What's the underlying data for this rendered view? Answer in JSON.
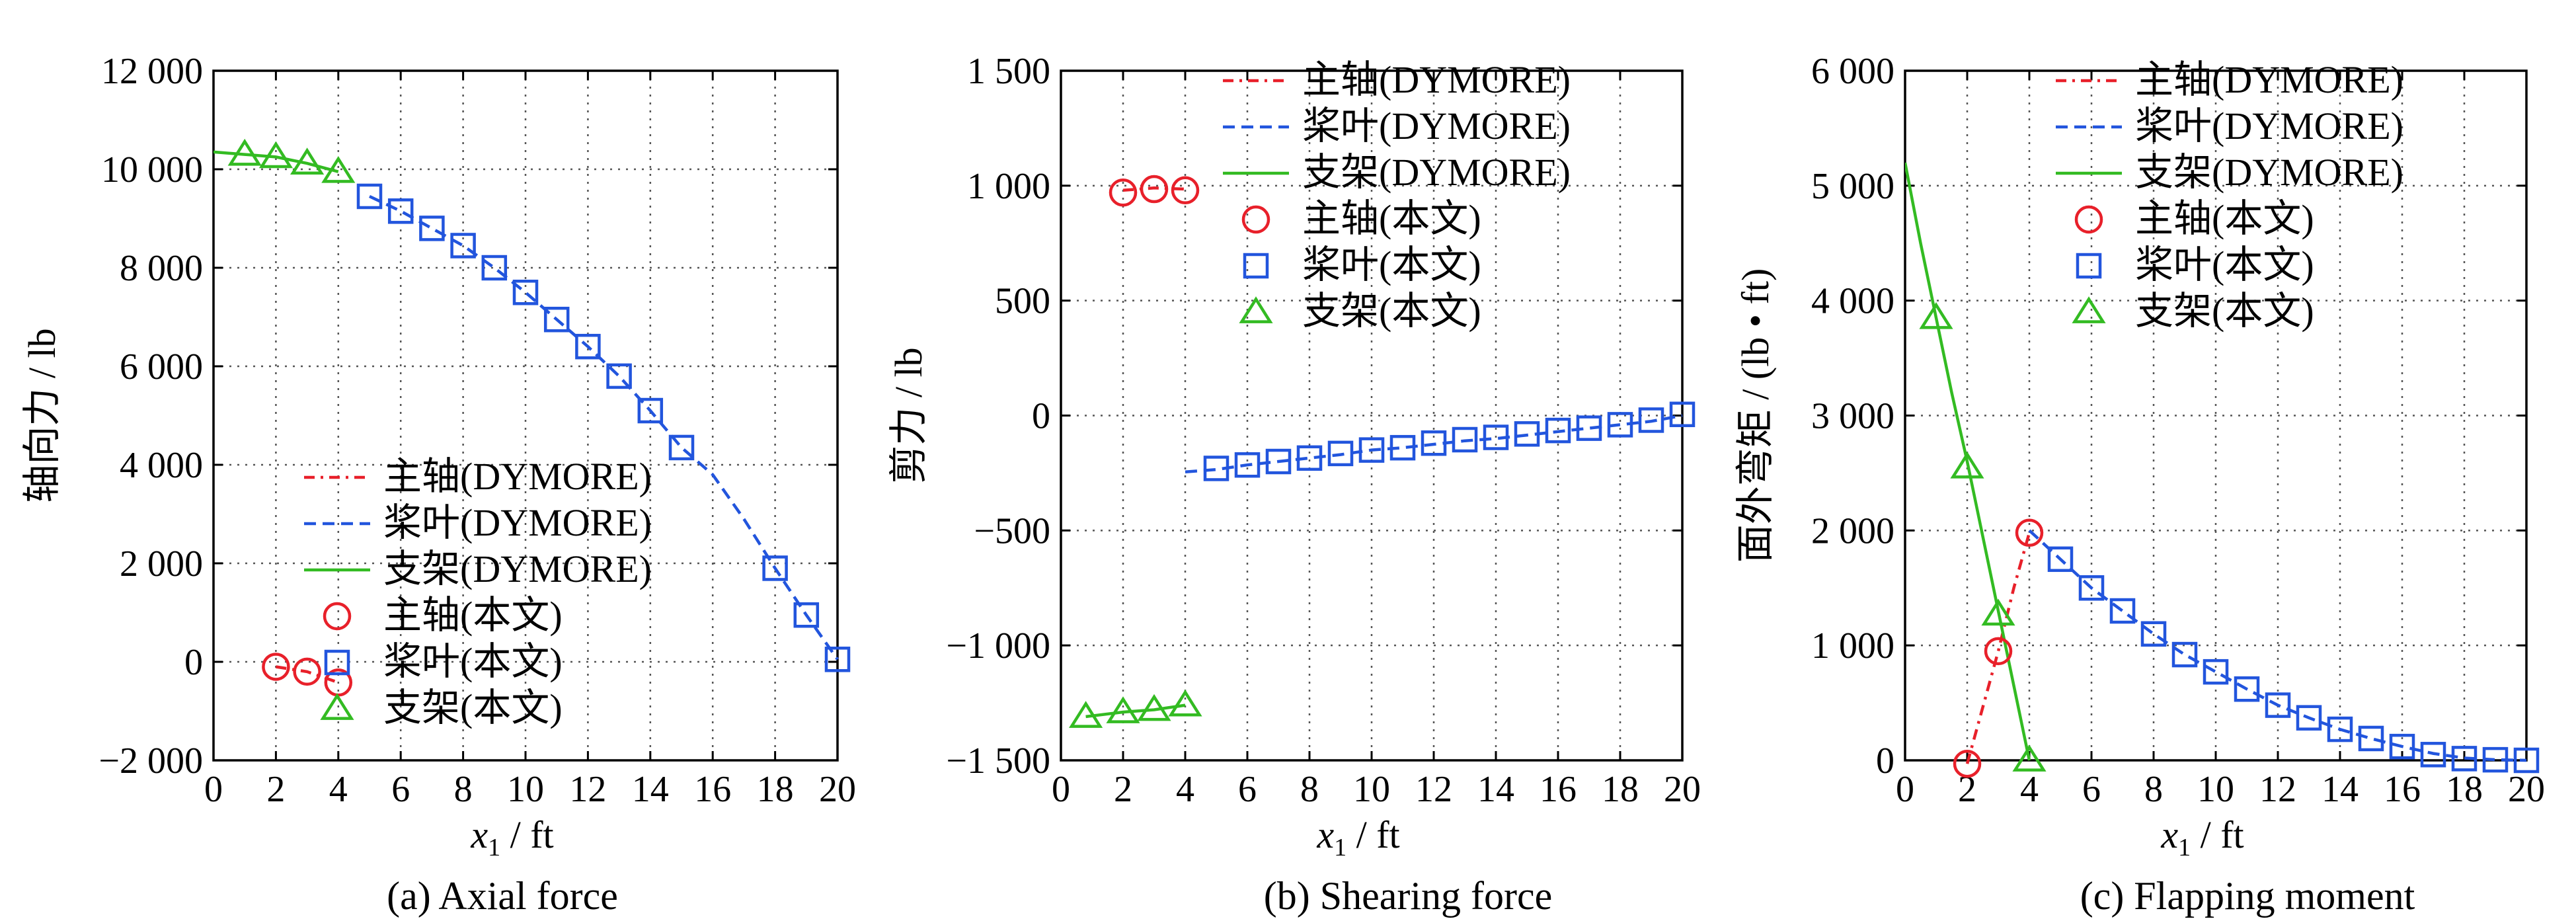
{
  "colors": {
    "main_shaft": "#e8202a",
    "blade": "#2255dd",
    "bracket": "#33bb22",
    "grid": "#555555",
    "axis": "#000000"
  },
  "chart_data": [
    {
      "type": "scatter",
      "caption": "(a)  Axial force",
      "ylabel": "轴向力 / lb",
      "xlabel_var": "x",
      "xlabel_sub": "1",
      "xlabel_unit": " / ft",
      "xlim": [
        0,
        20
      ],
      "ylim": [
        -2000,
        12000
      ],
      "xticks": [
        0,
        2,
        4,
        6,
        8,
        10,
        12,
        14,
        16,
        18,
        20
      ],
      "xtick_labels": [
        "0",
        "2",
        "4",
        "6",
        "8",
        "10",
        "12",
        "14",
        "16",
        "18",
        "20"
      ],
      "yticks": [
        -2000,
        0,
        2000,
        4000,
        6000,
        8000,
        10000,
        12000
      ],
      "ytick_labels": [
        "−2 000",
        "0",
        "2 000",
        "4 000",
        "6 000",
        "8 000",
        "10 000",
        "12 000"
      ],
      "grid": true,
      "legend_position": "lower-center",
      "legend": [
        "主轴(DYMORE)",
        "桨叶(DYMORE)",
        "支架(DYMORE)",
        "主轴(本文)",
        "桨叶(本文)",
        "支架(本文)"
      ],
      "series": [
        {
          "key": "main_shaft",
          "style": "dashdot",
          "points": [
            [
              2,
              -100
            ],
            [
              3,
              -200
            ],
            [
              4,
              -420
            ]
          ]
        },
        {
          "key": "blade",
          "style": "dashed",
          "points": [
            [
              5,
              9450
            ],
            [
              6,
              9150
            ],
            [
              7,
              8800
            ],
            [
              8,
              8450
            ],
            [
              9,
              8000
            ],
            [
              10,
              7500
            ],
            [
              11,
              6950
            ],
            [
              12,
              6400
            ],
            [
              13,
              5800
            ],
            [
              14,
              5100
            ],
            [
              15,
              4350
            ],
            [
              16,
              3800
            ],
            [
              17,
              2900
            ],
            [
              18,
              1900
            ],
            [
              19,
              950
            ],
            [
              20,
              50
            ]
          ]
        },
        {
          "key": "bracket",
          "style": "solid",
          "points": [
            [
              0,
              10350
            ],
            [
              1,
              10300
            ],
            [
              2,
              10250
            ],
            [
              3,
              10120
            ],
            [
              4,
              9950
            ]
          ]
        },
        {
          "key": "main_shaft",
          "style": "circle",
          "points": [
            [
              2,
              -100
            ],
            [
              3,
              -200
            ],
            [
              4,
              -420
            ]
          ]
        },
        {
          "key": "blade",
          "style": "square",
          "points": [
            [
              5,
              9450
            ],
            [
              6,
              9150
            ],
            [
              7,
              8800
            ],
            [
              8,
              8450
            ],
            [
              9,
              8000
            ],
            [
              10,
              7500
            ],
            [
              11,
              6950
            ],
            [
              12,
              6400
            ],
            [
              13,
              5800
            ],
            [
              14,
              5100
            ],
            [
              15,
              4350
            ],
            [
              18,
              1900
            ],
            [
              19,
              950
            ],
            [
              20,
              50
            ]
          ]
        },
        {
          "key": "bracket",
          "style": "triangle",
          "points": [
            [
              1,
              10300
            ],
            [
              2,
              10250
            ],
            [
              3,
              10120
            ],
            [
              4,
              9950
            ]
          ]
        }
      ]
    },
    {
      "type": "scatter",
      "caption": "(b)  Shearing force",
      "ylabel": "剪力 / lb",
      "xlabel_var": "x",
      "xlabel_sub": "1",
      "xlabel_unit": " / ft",
      "xlim": [
        0,
        20
      ],
      "ylim": [
        -1500,
        1500
      ],
      "xticks": [
        0,
        2,
        4,
        6,
        8,
        10,
        12,
        14,
        16,
        18,
        20
      ],
      "xtick_labels": [
        "0",
        "2",
        "4",
        "6",
        "8",
        "10",
        "12",
        "14",
        "16",
        "18",
        "20"
      ],
      "yticks": [
        -1500,
        -1000,
        -500,
        0,
        500,
        1000,
        1500
      ],
      "ytick_labels": [
        "−1 500",
        "−1 000",
        "−500",
        "0",
        "500",
        "1 000",
        "1 500"
      ],
      "grid": true,
      "legend_position": "top-right",
      "legend": [
        "主轴(DYMORE)",
        "桨叶(DYMORE)",
        "支架(DYMORE)",
        "主轴(本文)",
        "桨叶(本文)",
        "支架(本文)"
      ],
      "series": [
        {
          "key": "main_shaft",
          "style": "dashdot",
          "points": [
            [
              2,
              980
            ],
            [
              3,
              990
            ],
            [
              4,
              985
            ]
          ]
        },
        {
          "key": "blade",
          "style": "dashed",
          "points": [
            [
              4,
              -245
            ],
            [
              5,
              -235
            ],
            [
              6,
              -215
            ],
            [
              7,
              -200
            ],
            [
              8,
              -185
            ],
            [
              9,
              -170
            ],
            [
              10,
              -150
            ],
            [
              11,
              -140
            ],
            [
              12,
              -125
            ],
            [
              13,
              -110
            ],
            [
              14,
              -100
            ],
            [
              15,
              -85
            ],
            [
              16,
              -70
            ],
            [
              17,
              -55
            ],
            [
              18,
              -40
            ],
            [
              19,
              -25
            ],
            [
              20,
              0
            ]
          ]
        },
        {
          "key": "bracket",
          "style": "solid",
          "points": [
            [
              0.8,
              -1310
            ],
            [
              2,
              -1290
            ],
            [
              3,
              -1280
            ],
            [
              4,
              -1260
            ]
          ]
        },
        {
          "key": "main_shaft",
          "style": "circle",
          "points": [
            [
              2,
              970
            ],
            [
              3,
              985
            ],
            [
              4,
              980
            ]
          ]
        },
        {
          "key": "blade",
          "style": "square",
          "points": [
            [
              5,
              -230
            ],
            [
              6,
              -215
            ],
            [
              7,
              -200
            ],
            [
              8,
              -185
            ],
            [
              9,
              -165
            ],
            [
              10,
              -150
            ],
            [
              11,
              -140
            ],
            [
              12,
              -120
            ],
            [
              13,
              -105
            ],
            [
              14,
              -95
            ],
            [
              15,
              -80
            ],
            [
              16,
              -65
            ],
            [
              17,
              -55
            ],
            [
              18,
              -40
            ],
            [
              19,
              -20
            ],
            [
              20,
              5
            ]
          ]
        },
        {
          "key": "bracket",
          "style": "triangle",
          "points": [
            [
              0.8,
              -1310
            ],
            [
              2,
              -1290
            ],
            [
              3,
              -1280
            ],
            [
              4,
              -1260
            ]
          ]
        }
      ]
    },
    {
      "type": "scatter",
      "caption": "(c)  Flapping moment",
      "ylabel": "面外弯矩 / (lb • ft)",
      "xlabel_var": "x",
      "xlabel_sub": "1",
      "xlabel_unit": " / ft",
      "xlim": [
        0,
        20
      ],
      "ylim": [
        0,
        6000
      ],
      "xticks": [
        0,
        2,
        4,
        6,
        8,
        10,
        12,
        14,
        16,
        18,
        20
      ],
      "xtick_labels": [
        "0",
        "2",
        "4",
        "6",
        "8",
        "10",
        "12",
        "14",
        "16",
        "18",
        "20"
      ],
      "yticks": [
        0,
        1000,
        2000,
        3000,
        4000,
        5000,
        6000
      ],
      "ytick_labels": [
        "0",
        "1 000",
        "2 000",
        "3 000",
        "4 000",
        "5 000",
        "6 000"
      ],
      "grid": true,
      "legend_position": "top-right",
      "legend": [
        "主轴(DYMORE)",
        "桨叶(DYMORE)",
        "支架(DYMORE)",
        "主轴(本文)",
        "桨叶(本文)",
        "支架(本文)"
      ],
      "series": [
        {
          "key": "main_shaft",
          "style": "dashdot",
          "points": [
            [
              2,
              -30
            ],
            [
              3,
              950
            ],
            [
              3.5,
              1500
            ],
            [
              4,
              1980
            ]
          ]
        },
        {
          "key": "blade",
          "style": "dashed",
          "points": [
            [
              4,
              2000
            ],
            [
              5,
              1750
            ],
            [
              6,
              1500
            ],
            [
              7,
              1300
            ],
            [
              8,
              1100
            ],
            [
              9,
              920
            ],
            [
              10,
              770
            ],
            [
              11,
              620
            ],
            [
              12,
              480
            ],
            [
              13,
              370
            ],
            [
              14,
              270
            ],
            [
              15,
              190
            ],
            [
              16,
              120
            ],
            [
              17,
              60
            ],
            [
              18,
              20
            ],
            [
              19,
              5
            ],
            [
              20,
              0
            ]
          ]
        },
        {
          "key": "bracket",
          "style": "solid",
          "points": [
            [
              0,
              5200
            ],
            [
              0.5,
              4500
            ],
            [
              1,
              3850
            ],
            [
              1.5,
              3200
            ],
            [
              2,
              2600
            ],
            [
              2.5,
              1950
            ],
            [
              3,
              1300
            ],
            [
              3.5,
              650
            ],
            [
              4,
              0
            ]
          ]
        },
        {
          "key": "main_shaft",
          "style": "circle",
          "points": [
            [
              2,
              -30
            ],
            [
              3,
              950
            ],
            [
              4,
              1980
            ]
          ]
        },
        {
          "key": "blade",
          "style": "square",
          "points": [
            [
              5,
              1750
            ],
            [
              6,
              1500
            ],
            [
              7,
              1300
            ],
            [
              8,
              1100
            ],
            [
              9,
              920
            ],
            [
              10,
              770
            ],
            [
              11,
              620
            ],
            [
              12,
              480
            ],
            [
              13,
              370
            ],
            [
              14,
              270
            ],
            [
              15,
              190
            ],
            [
              16,
              120
            ],
            [
              17,
              50
            ],
            [
              18,
              15
            ],
            [
              19,
              5
            ],
            [
              20,
              0
            ]
          ]
        },
        {
          "key": "bracket",
          "style": "triangle",
          "points": [
            [
              1,
              3850
            ],
            [
              2,
              2550
            ],
            [
              3,
              1270
            ],
            [
              4,
              0
            ]
          ]
        }
      ]
    }
  ]
}
